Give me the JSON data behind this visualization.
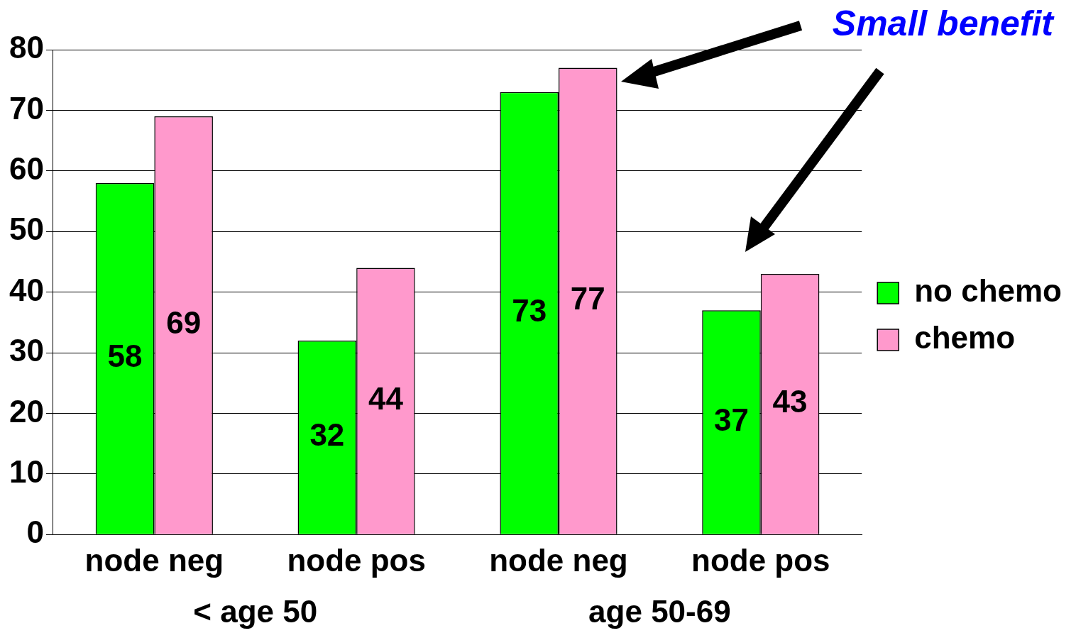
{
  "chart_data": {
    "type": "bar",
    "categories": [
      "node neg",
      "node pos",
      "node neg",
      "node pos"
    ],
    "series": [
      {
        "name": "no chemo",
        "color": "#00ff00",
        "values": [
          58,
          32,
          73,
          37
        ]
      },
      {
        "name": "chemo",
        "color": "#ff99cc",
        "values": [
          69,
          44,
          77,
          43
        ]
      }
    ],
    "ylim": [
      0,
      80
    ],
    "yticks": [
      0,
      10,
      20,
      30,
      40,
      50,
      60,
      70,
      80
    ],
    "grid": "y",
    "legend": "right",
    "data_labels": true,
    "annotations": [
      "< age 50",
      "age 50-69",
      "Small benefit"
    ]
  }
}
